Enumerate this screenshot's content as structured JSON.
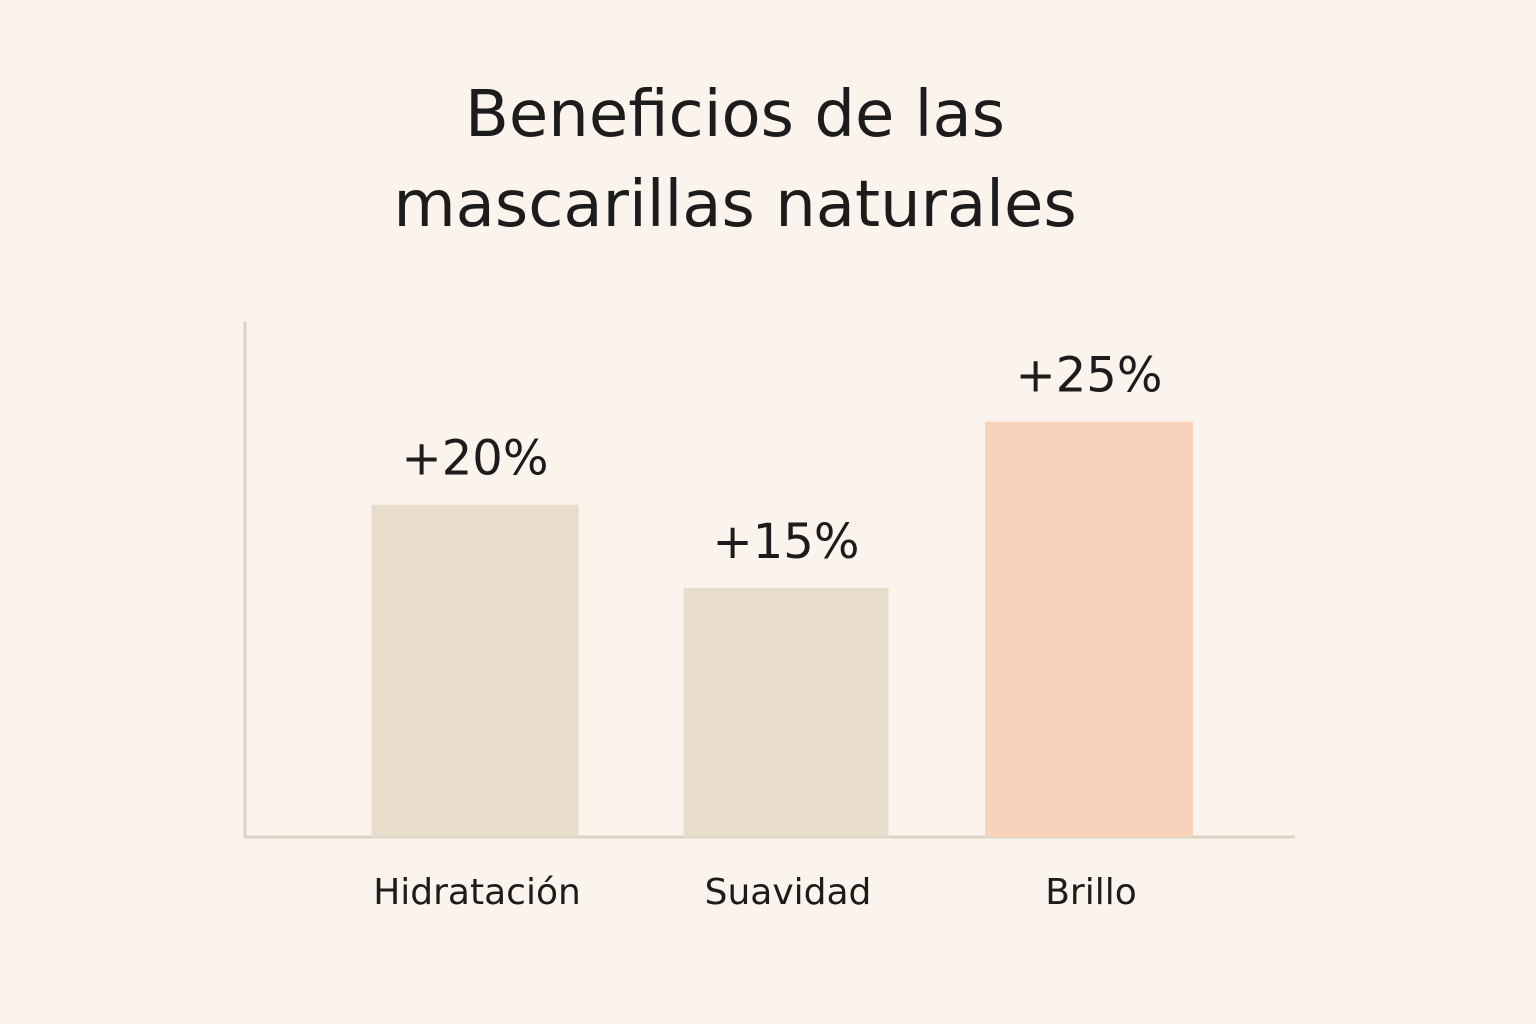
{
  "chart_data": {
    "type": "bar",
    "title_line1": "Beneficios de las",
    "title_line2": "mascarillas naturales",
    "categories": [
      "Hidratación",
      "Suavidad",
      "Brillo"
    ],
    "values": [
      20,
      15,
      25
    ],
    "value_labels": [
      "+20%",
      "+15%",
      "+25%"
    ],
    "bar_colors": [
      "#e8dccb",
      "#e8dccb",
      "#f7d3bc"
    ],
    "axis_color": "#dcd3c6",
    "ylim": [
      0,
      31
    ],
    "grid": false,
    "legend": "none"
  }
}
